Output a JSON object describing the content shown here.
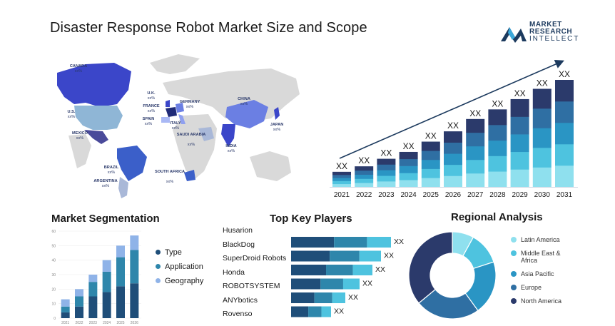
{
  "title": "Disaster Response Robot Market Size and Scope",
  "logo": {
    "line1": "MARKET",
    "line2": "RESEARCH",
    "line3": "INTELLECT"
  },
  "map_labels": [
    {
      "name": "CANADA",
      "value": "xx%"
    },
    {
      "name": "U.S.",
      "value": "xx%"
    },
    {
      "name": "MEXICO",
      "value": "xx%"
    },
    {
      "name": "BRAZIL",
      "value": "xx%"
    },
    {
      "name": "ARGENTINA",
      "value": "xx%"
    },
    {
      "name": "U.K.",
      "value": "xx%"
    },
    {
      "name": "FRANCE",
      "value": "xx%"
    },
    {
      "name": "SPAIN",
      "value": "xx%"
    },
    {
      "name": "GERMANY",
      "value": "xx%"
    },
    {
      "name": "ITALY",
      "value": "xx%"
    },
    {
      "name": "SAUDI ARABIA",
      "value": "xx%"
    },
    {
      "name": "SOUTH AFRICA",
      "value": "xx%"
    },
    {
      "name": "CHINA",
      "value": "xx%"
    },
    {
      "name": "INDIA",
      "value": "xx%"
    },
    {
      "name": "JAPAN",
      "value": "xx%"
    }
  ],
  "sections": {
    "segmentation": "Market Segmentation",
    "key_players": "Top Key Players",
    "regional": "Regional Analysis"
  },
  "colors": {
    "dark": "#2b3a6b",
    "mid": "#2f6fa3",
    "teal": "#2a95c4",
    "light": "#4ec3df",
    "pale": "#8fe0ee",
    "map_dark": "#3b46c9",
    "map_mid": "#6b7fe3",
    "map_light": "#a9b8f5",
    "map_grey": "#d9d9d9",
    "seg_type": "#1f4e79",
    "seg_app": "#2e86ab",
    "seg_geo": "#8fb3e8"
  },
  "chart_data": [
    {
      "type": "bar",
      "stacked": true,
      "categories": [
        "2021",
        "2022",
        "2023",
        "2024",
        "2025",
        "2026",
        "2027",
        "2028",
        "2029",
        "2030",
        "2031"
      ],
      "data_labels": [
        "XX",
        "XX",
        "XX",
        "XX",
        "XX",
        "XX",
        "XX",
        "XX",
        "XX",
        "XX",
        "XX"
      ],
      "totals": [
        2.2,
        3.0,
        4.1,
        5.1,
        6.6,
        8.1,
        9.9,
        11.3,
        12.8,
        14.3,
        15.6
      ],
      "segments": 5,
      "trend_arrow": true
    },
    {
      "type": "bar",
      "stacked": true,
      "categories": [
        "2021",
        "2022",
        "2023",
        "2024",
        "2025",
        "2026"
      ],
      "series": [
        {
          "name": "Type",
          "values": [
            4,
            8,
            15,
            18,
            22,
            24
          ]
        },
        {
          "name": "Application",
          "values": [
            4,
            7,
            10,
            14,
            20,
            23
          ]
        },
        {
          "name": "Geography",
          "values": [
            5,
            5,
            5,
            8,
            8,
            10
          ]
        }
      ],
      "yticks": [
        0,
        10,
        20,
        30,
        40,
        50,
        60
      ],
      "ylim": [
        0,
        60
      ]
    },
    {
      "type": "bar",
      "orientation": "horizontal",
      "categories": [
        "Husarion",
        "BlackDog",
        "SuperDroid Robots",
        "Honda",
        "ROBOTSYSTEM",
        "ANYbotics",
        "Rovenso"
      ],
      "values": [
        0,
        140,
        126,
        114,
        96,
        76,
        56
      ],
      "data_labels": [
        "",
        "XX",
        "XX",
        "XX",
        "XX",
        "XX",
        "XX"
      ]
    },
    {
      "type": "pie",
      "donut": true,
      "labels": [
        "Latin America",
        "Middle East & Africa",
        "Asia Pacific",
        "Europe",
        "North America"
      ],
      "values": [
        8,
        12,
        20,
        24,
        36
      ]
    }
  ]
}
